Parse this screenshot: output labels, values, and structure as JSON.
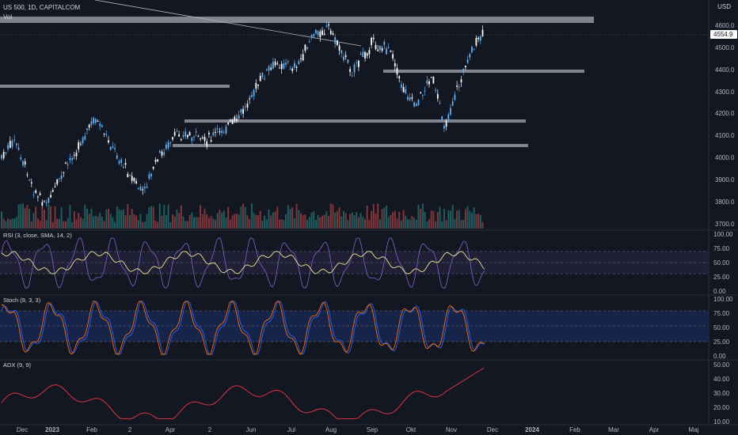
{
  "header": {
    "symbol_line": "US 500, 1D, CAPITALCOM",
    "vol_label": "Vol",
    "currency": "USD"
  },
  "price_axis": {
    "ticks": [
      "4600.0",
      "4500.0",
      "4400.0",
      "4300.0",
      "4200.0",
      "4100.0",
      "4000.0",
      "3900.0",
      "3800.0",
      "3700.0"
    ],
    "last_price": "4554.9"
  },
  "rsi": {
    "label": "RSI (3, close, SMA, 14, 2)",
    "ticks": [
      "100.00",
      "75.00",
      "50.00",
      "25.00",
      "0.00"
    ]
  },
  "stoch": {
    "label": "Stoch (9, 3, 3)",
    "ticks": [
      "100.00",
      "75.00",
      "50.00",
      "25.00",
      "0.00"
    ]
  },
  "adx": {
    "label": "ADX (9, 9)",
    "ticks": [
      "50.00",
      "40.00",
      "30.00",
      "20.00",
      "10.00"
    ]
  },
  "time_axis": [
    "Dec",
    "2023",
    "Feb",
    "2",
    "Apr",
    "2",
    "Jun",
    "Jul",
    "Aug",
    "Sep",
    "Okt",
    "Nov",
    "Dec",
    "2024",
    "Feb",
    "Mar",
    "Apr",
    "Maj"
  ],
  "colors": {
    "background": "#131722",
    "up": "#26a69a",
    "down": "#ef5350",
    "candle_up": "#5ab1f7",
    "candle_down": "#ffffff",
    "rsi_line": "#7e57c2",
    "rsi_ma": "#f0e68c",
    "stoch_k": "#2962ff",
    "stoch_d": "#ff6d00",
    "adx_line": "#f23645"
  }
}
